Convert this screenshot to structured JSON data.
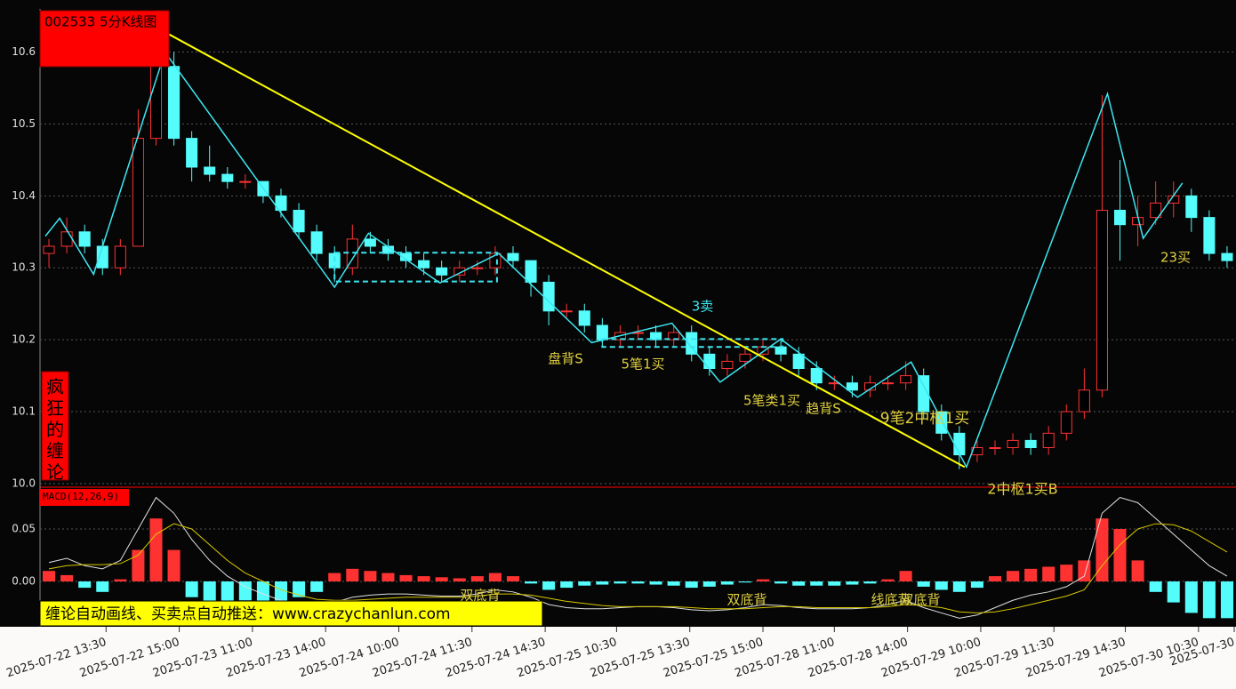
{
  "chart_data": {
    "type": "candlestick",
    "title": "002533 5分K线图",
    "side_label": "疯狂的缠论",
    "banner": "缠论自动画线、买卖点自动推送：www.crazychanlun.com",
    "up_color": "#ff3232",
    "down_color": "#54fcfc",
    "x": [
      0,
      1,
      2,
      3,
      4,
      5,
      6,
      7,
      8,
      9,
      10,
      11,
      12,
      13,
      14,
      15,
      16,
      17,
      18,
      19,
      20,
      21,
      22,
      23,
      24,
      25,
      26,
      27,
      28,
      29,
      30,
      31,
      32,
      33,
      34,
      35,
      36,
      37,
      38,
      39,
      40,
      41,
      42,
      43,
      44,
      45,
      46,
      47,
      48,
      49,
      50,
      51,
      52,
      53,
      54,
      55,
      56,
      57,
      58,
      59,
      60,
      61,
      62,
      63,
      64,
      65,
      66
    ],
    "candles": [
      [
        10.32,
        10.34,
        10.3,
        10.33
      ],
      [
        10.33,
        10.37,
        10.32,
        10.35
      ],
      [
        10.35,
        10.36,
        10.32,
        10.33
      ],
      [
        10.33,
        10.34,
        10.29,
        10.3
      ],
      [
        10.3,
        10.34,
        10.29,
        10.33
      ],
      [
        10.33,
        10.52,
        10.33,
        10.48
      ],
      [
        10.48,
        10.62,
        10.47,
        10.58
      ],
      [
        10.58,
        10.6,
        10.47,
        10.48
      ],
      [
        10.48,
        10.49,
        10.42,
        10.44
      ],
      [
        10.44,
        10.47,
        10.42,
        10.43
      ],
      [
        10.43,
        10.44,
        10.41,
        10.42
      ],
      [
        10.42,
        10.43,
        10.41,
        10.42
      ],
      [
        10.42,
        10.42,
        10.39,
        10.4
      ],
      [
        10.4,
        10.41,
        10.37,
        10.38
      ],
      [
        10.38,
        10.39,
        10.34,
        10.35
      ],
      [
        10.35,
        10.36,
        10.31,
        10.32
      ],
      [
        10.32,
        10.33,
        10.28,
        10.3
      ],
      [
        10.3,
        10.36,
        10.29,
        10.34
      ],
      [
        10.34,
        10.35,
        10.32,
        10.33
      ],
      [
        10.33,
        10.34,
        10.31,
        10.32
      ],
      [
        10.32,
        10.33,
        10.3,
        10.31
      ],
      [
        10.31,
        10.32,
        10.29,
        10.3
      ],
      [
        10.3,
        10.31,
        10.28,
        10.29
      ],
      [
        10.29,
        10.31,
        10.28,
        10.3
      ],
      [
        10.3,
        10.31,
        10.29,
        10.3
      ],
      [
        10.3,
        10.33,
        10.29,
        10.32
      ],
      [
        10.32,
        10.33,
        10.3,
        10.31
      ],
      [
        10.31,
        10.31,
        10.26,
        10.28
      ],
      [
        10.28,
        10.29,
        10.22,
        10.24
      ],
      [
        10.24,
        10.25,
        10.23,
        10.24
      ],
      [
        10.24,
        10.25,
        10.21,
        10.22
      ],
      [
        10.22,
        10.23,
        10.19,
        10.2
      ],
      [
        10.2,
        10.22,
        10.19,
        10.21
      ],
      [
        10.21,
        10.22,
        10.2,
        10.21
      ],
      [
        10.21,
        10.22,
        10.19,
        10.2
      ],
      [
        10.2,
        10.22,
        10.19,
        10.21
      ],
      [
        10.21,
        10.22,
        10.17,
        10.18
      ],
      [
        10.18,
        10.19,
        10.15,
        10.16
      ],
      [
        10.16,
        10.18,
        10.15,
        10.17
      ],
      [
        10.17,
        10.19,
        10.16,
        10.18
      ],
      [
        10.18,
        10.2,
        10.17,
        10.19
      ],
      [
        10.19,
        10.2,
        10.17,
        10.18
      ],
      [
        10.18,
        10.19,
        10.15,
        10.16
      ],
      [
        10.16,
        10.17,
        10.13,
        10.14
      ],
      [
        10.14,
        10.15,
        10.13,
        10.14
      ],
      [
        10.14,
        10.15,
        10.12,
        10.13
      ],
      [
        10.13,
        10.15,
        10.12,
        10.14
      ],
      [
        10.14,
        10.15,
        10.13,
        10.14
      ],
      [
        10.14,
        10.17,
        10.13,
        10.15
      ],
      [
        10.15,
        10.16,
        10.09,
        10.1
      ],
      [
        10.1,
        10.11,
        10.06,
        10.07
      ],
      [
        10.07,
        10.08,
        10.02,
        10.04
      ],
      [
        10.04,
        10.06,
        10.03,
        10.05
      ],
      [
        10.05,
        10.06,
        10.04,
        10.05
      ],
      [
        10.05,
        10.07,
        10.04,
        10.06
      ],
      [
        10.06,
        10.07,
        10.04,
        10.05
      ],
      [
        10.05,
        10.08,
        10.04,
        10.07
      ],
      [
        10.07,
        10.11,
        10.06,
        10.1
      ],
      [
        10.1,
        10.16,
        10.09,
        10.13
      ],
      [
        10.13,
        10.54,
        10.12,
        10.38
      ],
      [
        10.38,
        10.45,
        10.31,
        10.36
      ],
      [
        10.36,
        10.4,
        10.33,
        10.37
      ],
      [
        10.37,
        10.42,
        10.36,
        10.39
      ],
      [
        10.39,
        10.42,
        10.37,
        10.4
      ],
      [
        10.4,
        10.41,
        10.35,
        10.37
      ],
      [
        10.37,
        10.38,
        10.31,
        10.32
      ],
      [
        10.32,
        10.33,
        10.3,
        10.31
      ]
    ],
    "xlim": [
      -0.5,
      66.5
    ],
    "ylim": [
      9.995,
      10.66
    ],
    "yticks": [
      {
        "value": 10,
        "label": "10.0"
      },
      10.1,
      10.2,
      10.3,
      10.4,
      10.5,
      10.6
    ],
    "xticks": [
      {
        "value": 3.2,
        "label": "2025-07-22 13:30"
      },
      {
        "value": 7.3,
        "label": "2025-07-22 15:00"
      },
      {
        "value": 11.4,
        "label": "2025-07-23 11:00"
      },
      {
        "value": 15.5,
        "label": "2025-07-23 14:00"
      },
      {
        "value": 19.6,
        "label": "2025-07-24 10:00"
      },
      {
        "value": 23.7,
        "label": "2025-07-24 11:30"
      },
      {
        "value": 27.8,
        "label": "2025-07-24 14:30"
      },
      {
        "value": 31.8,
        "label": "2025-07-25 10:30"
      },
      {
        "value": 35.9,
        "label": "2025-07-25 13:30"
      },
      {
        "value": 40.0,
        "label": "2025-07-25 15:00"
      },
      {
        "value": 44.0,
        "label": "2025-07-28 11:00"
      },
      {
        "value": 48.1,
        "label": "2025-07-28 14:00"
      },
      {
        "value": 52.2,
        "label": "2025-07-29 10:00"
      },
      {
        "value": 56.3,
        "label": "2025-07-29 11:30"
      },
      {
        "value": 60.3,
        "label": "2025-07-29 14:30"
      },
      {
        "value": 64.4,
        "label": "2025-07-30 10:30"
      },
      {
        "value": 66.4,
        "label": "2025-07-30"
      }
    ],
    "grid": true,
    "bi": {
      "color": "#3ce6f0",
      "x": [
        -0.2,
        0.6,
        2.5,
        6.5,
        16.0,
        17.9,
        21.9,
        25.2,
        30.4,
        34.9,
        37.6,
        41.0,
        45.3,
        48.3,
        51.4,
        59.3,
        61.3,
        63.5
      ],
      "y": [
        10.344,
        10.369,
        10.291,
        10.6,
        10.273,
        10.348,
        10.279,
        10.32,
        10.196,
        10.223,
        10.141,
        10.201,
        10.12,
        10.169,
        10.023,
        10.542,
        10.341,
        10.418
      ]
    },
    "trendline": {
      "color": "#ffff00",
      "x": [
        6.7,
        51.3
      ],
      "y": [
        10.625,
        10.023
      ]
    },
    "zhongshu": [
      {
        "x": [
          16.0,
          25.1
        ],
        "y": [
          10.281,
          10.321
        ]
      },
      {
        "x": [
          31.0,
          41.1
        ],
        "y": [
          10.19,
          10.201
        ]
      }
    ],
    "annotations": [
      "3卖",
      "盘背S",
      "5笔1买",
      "5笔类1买",
      "趋背S",
      "9笔2中枢1买",
      "2中枢1买B",
      "23买",
      "双底背",
      "双底背",
      "线底背",
      "双底背"
    ],
    "macd": {
      "title": "MACD(12,26,9)",
      "ylim": [
        -0.0432,
        0.0898
      ],
      "yticks": [
        {
          "value": 0,
          "label": "0.00"
        },
        0.05
      ],
      "hist": [
        0.01,
        0.006,
        -0.006,
        -0.01,
        0.002,
        0.03,
        0.06,
        0.03,
        -0.015,
        -0.02,
        -0.02,
        -0.018,
        -0.02,
        -0.02,
        -0.015,
        -0.01,
        0.008,
        0.012,
        0.01,
        0.008,
        0.006,
        0.005,
        0.004,
        0.003,
        0.005,
        0.008,
        0.005,
        -0.002,
        -0.008,
        -0.006,
        -0.004,
        -0.003,
        -0.002,
        -0.002,
        -0.003,
        -0.004,
        -0.006,
        -0.005,
        -0.003,
        -0.001,
        0.002,
        -0.002,
        -0.004,
        -0.004,
        -0.004,
        -0.003,
        -0.002,
        0.002,
        0.01,
        -0.005,
        -0.008,
        -0.01,
        -0.006,
        0.005,
        0.01,
        0.012,
        0.014,
        0.016,
        0.02,
        0.06,
        0.05,
        0.02,
        -0.01,
        -0.02,
        -0.03,
        -0.035,
        -0.035
      ],
      "dif": {
        "color": "#e0e0e0",
        "values": [
          0.018,
          0.022,
          0.015,
          0.012,
          0.02,
          0.05,
          0.08,
          0.065,
          0.04,
          0.02,
          0.005,
          -0.005,
          -0.012,
          -0.018,
          -0.022,
          -0.025,
          -0.02,
          -0.015,
          -0.013,
          -0.012,
          -0.012,
          -0.013,
          -0.014,
          -0.014,
          -0.012,
          -0.008,
          -0.01,
          -0.015,
          -0.022,
          -0.025,
          -0.026,
          -0.026,
          -0.025,
          -0.024,
          -0.024,
          -0.025,
          -0.027,
          -0.028,
          -0.027,
          -0.025,
          -0.022,
          -0.023,
          -0.025,
          -0.026,
          -0.026,
          -0.026,
          -0.025,
          -0.022,
          -0.018,
          -0.025,
          -0.03,
          -0.035,
          -0.032,
          -0.025,
          -0.018,
          -0.013,
          -0.01,
          -0.005,
          0.005,
          0.065,
          0.08,
          0.075,
          0.06,
          0.045,
          0.03,
          0.015,
          0.005
        ]
      },
      "dea": {
        "color": "#d8c800",
        "values": [
          0.012,
          0.015,
          0.016,
          0.016,
          0.017,
          0.025,
          0.045,
          0.055,
          0.05,
          0.035,
          0.02,
          0.008,
          0,
          -0.008,
          -0.013,
          -0.017,
          -0.018,
          -0.018,
          -0.017,
          -0.016,
          -0.015,
          -0.015,
          -0.015,
          -0.015,
          -0.014,
          -0.012,
          -0.012,
          -0.013,
          -0.016,
          -0.019,
          -0.021,
          -0.023,
          -0.024,
          -0.024,
          -0.024,
          -0.024,
          -0.025,
          -0.026,
          -0.026,
          -0.026,
          -0.025,
          -0.024,
          -0.024,
          -0.025,
          -0.025,
          -0.025,
          -0.025,
          -0.024,
          -0.022,
          -0.023,
          -0.025,
          -0.029,
          -0.03,
          -0.029,
          -0.026,
          -0.022,
          -0.018,
          -0.014,
          -0.008,
          0.015,
          0.035,
          0.05,
          0.055,
          0.054,
          0.048,
          0.038,
          0.028
        ]
      }
    }
  }
}
